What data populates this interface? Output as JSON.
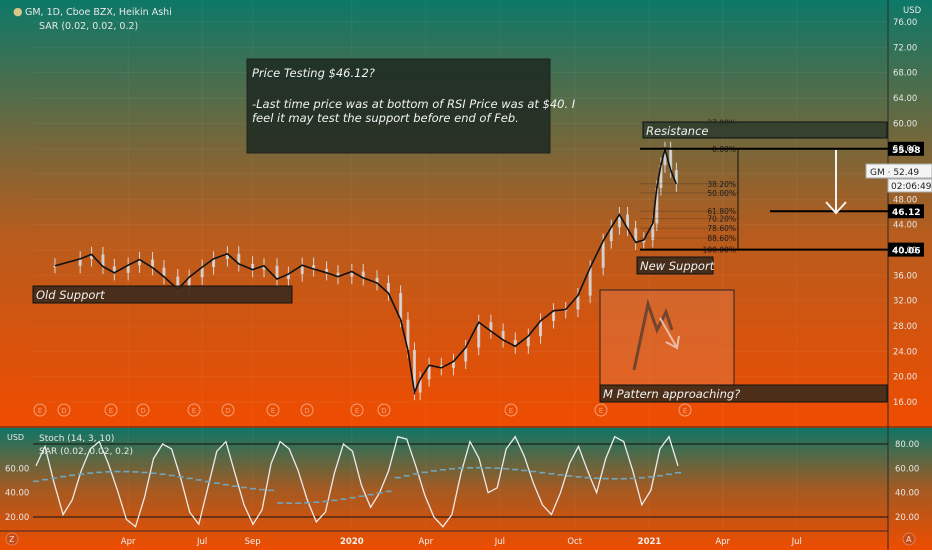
{
  "chart_data": {
    "type": "candlestick",
    "header": {
      "symbol_line": "GM, 1D, Cboe BZX, Heikin Ashi",
      "sar_line": "SAR (0.02, 0.02, 0.2)"
    },
    "price_axis": {
      "unit": "USD",
      "ticks": [
        76.0,
        72.0,
        68.0,
        64.0,
        60.0,
        56.0,
        52.0,
        48.0,
        44.0,
        40.0,
        36.0,
        32.0,
        28.0,
        24.0,
        20.0,
        16.0
      ],
      "tick_labels": [
        "76.00",
        "72.00",
        "68.00",
        "64.00",
        "60.00",
        "56.00",
        "52.00",
        "48.00",
        "44.00",
        "40.00",
        "36.00",
        "32.00",
        "28.00",
        "24.00",
        "20.00",
        "16.00"
      ],
      "ylim": [
        14.0,
        78.0
      ]
    },
    "time_axis": {
      "labels": [
        "Apr",
        "Jul",
        "Sep",
        "2020",
        "Apr",
        "Jul",
        "Oct",
        "2021",
        "Apr",
        "Jul"
      ],
      "label_dates": [
        "2019-04",
        "2019-07",
        "2019-09",
        "2020-01",
        "2020-04",
        "2020-07",
        "2020-10",
        "2021-01",
        "2021-04",
        "2021-07"
      ]
    },
    "price_series": [
      {
        "date": "2019-01-01",
        "close": 37.5
      },
      {
        "date": "2019-02-01",
        "close": 38.6
      },
      {
        "date": "2019-02-15",
        "close": 39.3
      },
      {
        "date": "2019-03-01",
        "close": 37.4
      },
      {
        "date": "2019-03-15",
        "close": 36.4
      },
      {
        "date": "2019-04-01",
        "close": 37.6
      },
      {
        "date": "2019-04-15",
        "close": 38.5
      },
      {
        "date": "2019-05-01",
        "close": 37.2
      },
      {
        "date": "2019-05-15",
        "close": 35.8
      },
      {
        "date": "2019-06-01",
        "close": 33.8
      },
      {
        "date": "2019-06-15",
        "close": 35.7
      },
      {
        "date": "2019-07-01",
        "close": 37.3
      },
      {
        "date": "2019-07-15",
        "close": 38.6
      },
      {
        "date": "2019-08-01",
        "close": 39.4
      },
      {
        "date": "2019-08-15",
        "close": 37.8
      },
      {
        "date": "2019-09-01",
        "close": 36.9
      },
      {
        "date": "2019-09-15",
        "close": 37.5
      },
      {
        "date": "2019-10-01",
        "close": 35.4
      },
      {
        "date": "2019-10-15",
        "close": 36.2
      },
      {
        "date": "2019-11-01",
        "close": 37.6
      },
      {
        "date": "2019-11-15",
        "close": 37.0
      },
      {
        "date": "2019-12-01",
        "close": 36.4
      },
      {
        "date": "2019-12-15",
        "close": 35.8
      },
      {
        "date": "2020-01-01",
        "close": 36.6
      },
      {
        "date": "2020-01-15",
        "close": 35.6
      },
      {
        "date": "2020-02-01",
        "close": 34.8
      },
      {
        "date": "2020-02-15",
        "close": 33.2
      },
      {
        "date": "2020-03-01",
        "close": 29.0
      },
      {
        "date": "2020-03-10",
        "close": 24.2
      },
      {
        "date": "2020-03-18",
        "close": 17.5
      },
      {
        "date": "2020-03-25",
        "close": 19.6
      },
      {
        "date": "2020-04-05",
        "close": 21.8
      },
      {
        "date": "2020-04-20",
        "close": 21.4
      },
      {
        "date": "2020-05-05",
        "close": 22.4
      },
      {
        "date": "2020-05-20",
        "close": 24.6
      },
      {
        "date": "2020-06-05",
        "close": 28.6
      },
      {
        "date": "2020-06-20",
        "close": 27.2
      },
      {
        "date": "2020-07-05",
        "close": 25.8
      },
      {
        "date": "2020-07-20",
        "close": 24.8
      },
      {
        "date": "2020-08-05",
        "close": 26.4
      },
      {
        "date": "2020-08-20",
        "close": 28.8
      },
      {
        "date": "2020-09-05",
        "close": 30.4
      },
      {
        "date": "2020-09-20",
        "close": 30.6
      },
      {
        "date": "2020-10-05",
        "close": 32.8
      },
      {
        "date": "2020-10-20",
        "close": 37.2
      },
      {
        "date": "2020-11-05",
        "close": 41.4
      },
      {
        "date": "2020-11-15",
        "close": 43.6
      },
      {
        "date": "2020-11-25",
        "close": 45.6
      },
      {
        "date": "2020-12-05",
        "close": 43.4
      },
      {
        "date": "2020-12-15",
        "close": 41.2
      },
      {
        "date": "2020-12-25",
        "close": 41.6
      },
      {
        "date": "2021-01-05",
        "close": 44.2
      },
      {
        "date": "2021-01-10",
        "close": 49.8
      },
      {
        "date": "2021-01-15",
        "close": 53.4
      },
      {
        "date": "2021-01-20",
        "close": 55.9
      },
      {
        "date": "2021-01-27",
        "close": 52.6
      },
      {
        "date": "2021-02-03",
        "close": 50.4
      }
    ],
    "fib_levels": [
      {
        "label": "-27.00%",
        "price": 60.1
      },
      {
        "label": "0.00%",
        "price": 55.98
      },
      {
        "label": "38.20%",
        "price": 50.46
      },
      {
        "label": "50.00%",
        "price": 49.02
      },
      {
        "label": "61.80%",
        "price": 46.12
      },
      {
        "label": "70.20%",
        "price": 44.96
      },
      {
        "label": "78.60%",
        "price": 43.44
      },
      {
        "label": "88.60%",
        "price": 41.9
      },
      {
        "label": "100.00%",
        "price": 40.06
      }
    ],
    "horizontal_levels": [
      {
        "price": 55.98,
        "label": "55.98"
      },
      {
        "price": 46.12,
        "label": "46.12"
      },
      {
        "price": 40.06,
        "label": "40.06"
      }
    ],
    "current_price_tag": {
      "text": "GM · 52.49",
      "countdown": "02:06:49",
      "price": 52.49
    },
    "annotations": {
      "note_title": "Price Testing $46.12?",
      "note_body_line1": "-Last time price was at bottom of RSI Price was at $40. I",
      "note_body_line2": "feel it may test the support before end of Feb.",
      "resistance": "Resistance",
      "old_support": "Old Support",
      "new_support": "New Support",
      "m_pattern": "M Pattern approaching?"
    },
    "oscillator": {
      "stoch_label": "Stoch (14, 3, 10)",
      "sar_label": "SAR (0.02, 0.02, 0.2)",
      "unit": "USD",
      "left_ticks": [
        "60.00",
        "40.00",
        "20.00"
      ],
      "right_ticks": [
        "80.00",
        "60.00",
        "40.00",
        "20.00"
      ],
      "upper_band": 80,
      "lower_band": 20,
      "stoch_values": [
        62,
        78,
        48,
        22,
        34,
        58,
        76,
        82,
        64,
        42,
        18,
        12,
        36,
        68,
        80,
        76,
        52,
        24,
        14,
        44,
        74,
        82,
        56,
        30,
        14,
        26,
        64,
        82,
        76,
        58,
        34,
        16,
        24,
        56,
        80,
        74,
        46,
        28,
        40,
        58,
        86,
        84,
        62,
        38,
        20,
        12,
        22,
        56,
        82,
        68,
        40,
        44,
        76,
        86,
        70,
        48,
        30,
        22,
        40,
        64,
        78,
        58,
        40,
        68,
        86,
        82,
        58,
        30,
        42,
        76,
        86,
        62
      ]
    },
    "colors": {
      "gradient_top": "#0e7a6c",
      "gradient_mid": "#c6581a",
      "gradient_bottom": "#ee4a00",
      "price_line": "#111111",
      "candle": "#d8d8d8",
      "stoch_line": "#e8e8e8",
      "sar_dots": "#6fa6bd",
      "level_line": "#000000",
      "annotation_box": "#2b2219"
    }
  }
}
